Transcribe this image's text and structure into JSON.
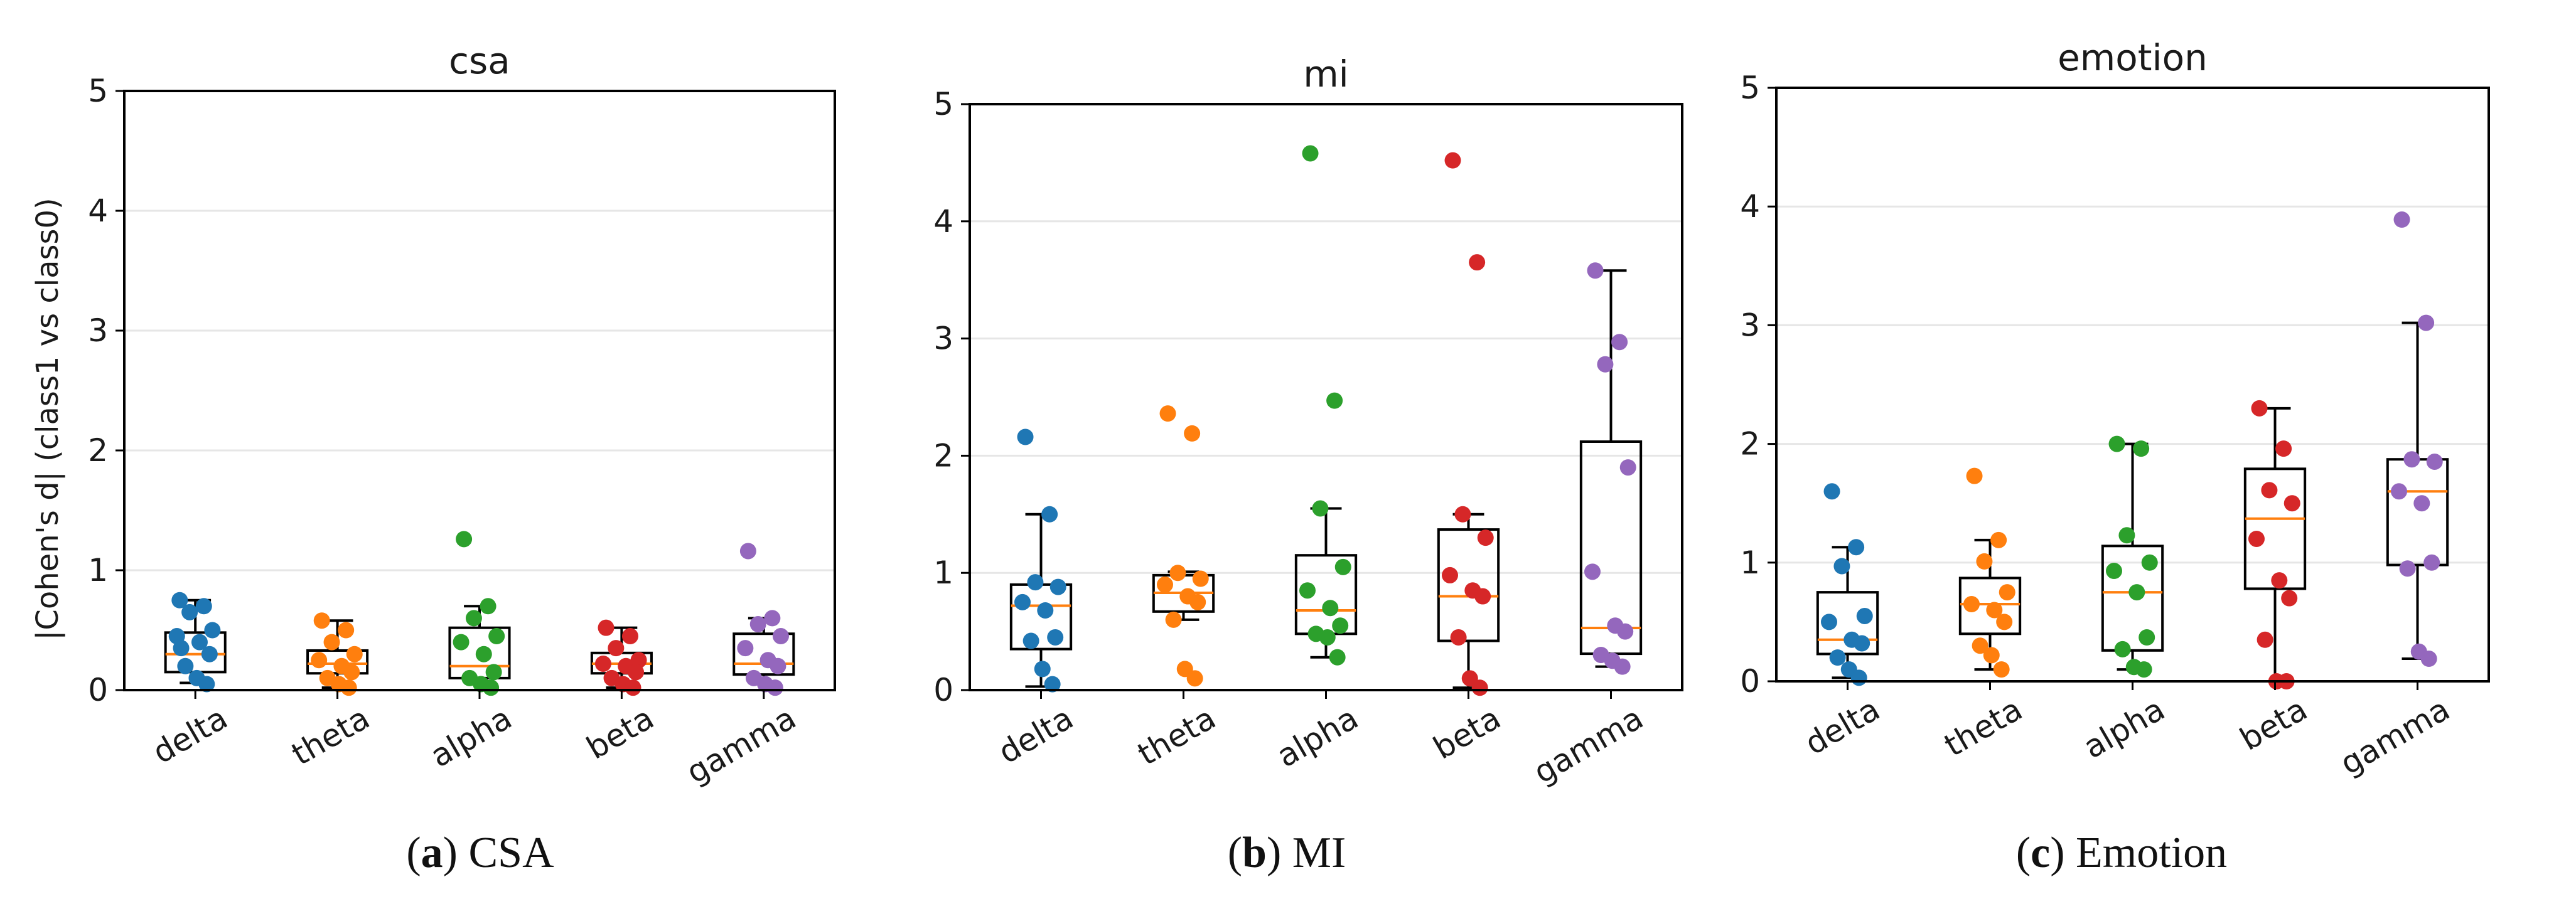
{
  "figure": {
    "y_axis_label": "|Cohen's d| (class1 vs class0)",
    "captions": [
      {
        "letter": "a",
        "text": "CSA"
      },
      {
        "letter": "b",
        "text": "MI"
      },
      {
        "letter": "c",
        "text": "Emotion"
      }
    ]
  },
  "colors": {
    "delta": "#1f77b4",
    "theta": "#ff7f0e",
    "alpha": "#2ca02c",
    "beta": "#d62728",
    "gamma": "#9467bd",
    "median": "#ff7f0e",
    "box": "#000000",
    "grid": "#e6e6e6"
  },
  "chart_data": [
    {
      "type": "box",
      "title": "csa",
      "categories": [
        "delta",
        "theta",
        "alpha",
        "beta",
        "gamma"
      ],
      "ylim": [
        0,
        5
      ],
      "yticks": [
        0,
        1,
        2,
        3,
        4,
        5
      ],
      "grid": "horizontal",
      "boxes": [
        {
          "q1": 0.15,
          "median": 0.3,
          "q3": 0.48,
          "whisker_low": 0.06,
          "whisker_high": 0.75
        },
        {
          "q1": 0.14,
          "median": 0.22,
          "q3": 0.33,
          "whisker_low": 0.02,
          "whisker_high": 0.58
        },
        {
          "q1": 0.1,
          "median": 0.2,
          "q3": 0.52,
          "whisker_low": 0.0,
          "whisker_high": 0.7
        },
        {
          "q1": 0.14,
          "median": 0.22,
          "q3": 0.31,
          "whisker_low": 0.02,
          "whisker_high": 0.52
        },
        {
          "q1": 0.13,
          "median": 0.22,
          "q3": 0.47,
          "whisker_low": 0.0,
          "whisker_high": 0.6
        }
      ],
      "points": [
        [
          0.75,
          0.7,
          0.65,
          0.5,
          0.45,
          0.4,
          0.3,
          0.2,
          0.1,
          0.05,
          0.35
        ],
        [
          0.58,
          0.5,
          0.4,
          0.3,
          0.25,
          0.2,
          0.15,
          0.1,
          0.05,
          0.02
        ],
        [
          1.26,
          0.7,
          0.6,
          0.45,
          0.4,
          0.3,
          0.15,
          0.1,
          0.05,
          0.02
        ],
        [
          0.52,
          0.45,
          0.35,
          0.25,
          0.22,
          0.2,
          0.15,
          0.1,
          0.05,
          0.02
        ],
        [
          1.16,
          0.6,
          0.55,
          0.45,
          0.35,
          0.25,
          0.2,
          0.1,
          0.05,
          0.02
        ]
      ]
    },
    {
      "type": "box",
      "title": "mi",
      "categories": [
        "delta",
        "theta",
        "alpha",
        "beta",
        "gamma"
      ],
      "ylim": [
        0,
        5
      ],
      "yticks": [
        0,
        1,
        2,
        3,
        4,
        5
      ],
      "grid": "horizontal",
      "boxes": [
        {
          "q1": 0.35,
          "median": 0.72,
          "q3": 0.9,
          "whisker_low": 0.03,
          "whisker_high": 1.5
        },
        {
          "q1": 0.67,
          "median": 0.83,
          "q3": 0.98,
          "whisker_low": 0.6,
          "whisker_high": 1.01
        },
        {
          "q1": 0.48,
          "median": 0.68,
          "q3": 1.15,
          "whisker_low": 0.28,
          "whisker_high": 1.55
        },
        {
          "q1": 0.42,
          "median": 0.8,
          "q3": 1.37,
          "whisker_low": 0.02,
          "whisker_high": 1.5
        },
        {
          "q1": 0.31,
          "median": 0.53,
          "q3": 2.12,
          "whisker_low": 0.2,
          "whisker_high": 3.58
        }
      ],
      "points": [
        [
          2.16,
          1.5,
          0.92,
          0.88,
          0.75,
          0.68,
          0.45,
          0.42,
          0.18,
          0.05
        ],
        [
          2.36,
          2.19,
          1.0,
          0.95,
          0.9,
          0.8,
          0.75,
          0.6,
          0.18,
          0.1
        ],
        [
          4.58,
          2.47,
          1.55,
          1.05,
          0.85,
          0.7,
          0.55,
          0.48,
          0.45,
          0.28
        ],
        [
          4.52,
          3.65,
          1.5,
          1.3,
          0.98,
          0.85,
          0.8,
          0.45,
          0.1,
          0.02
        ],
        [
          3.58,
          2.97,
          2.78,
          1.9,
          1.01,
          0.55,
          0.5,
          0.3,
          0.25,
          0.2
        ]
      ]
    },
    {
      "type": "box",
      "title": "emotion",
      "categories": [
        "delta",
        "theta",
        "alpha",
        "beta",
        "gamma"
      ],
      "ylim": [
        0,
        5
      ],
      "yticks": [
        0,
        1,
        2,
        3,
        4,
        5
      ],
      "grid": "horizontal",
      "boxes": [
        {
          "q1": 0.23,
          "median": 0.35,
          "q3": 0.75,
          "whisker_low": 0.03,
          "whisker_high": 1.13
        },
        {
          "q1": 0.4,
          "median": 0.65,
          "q3": 0.87,
          "whisker_low": 0.1,
          "whisker_high": 1.19
        },
        {
          "q1": 0.26,
          "median": 0.75,
          "q3": 1.14,
          "whisker_low": 0.1,
          "whisker_high": 2.0
        },
        {
          "q1": 0.78,
          "median": 1.37,
          "q3": 1.79,
          "whisker_low": 0.0,
          "whisker_high": 2.3
        },
        {
          "q1": 0.98,
          "median": 1.6,
          "q3": 1.87,
          "whisker_low": 0.19,
          "whisker_high": 3.02
        }
      ],
      "points": [
        [
          1.6,
          1.13,
          0.97,
          0.55,
          0.5,
          0.35,
          0.32,
          0.2,
          0.1,
          0.03
        ],
        [
          1.73,
          1.19,
          1.01,
          0.75,
          0.65,
          0.6,
          0.5,
          0.3,
          0.22,
          0.1
        ],
        [
          2.0,
          1.96,
          1.23,
          1.0,
          0.93,
          0.75,
          0.37,
          0.27,
          0.12,
          0.1
        ],
        [
          2.3,
          1.96,
          1.61,
          1.5,
          1.2,
          0.85,
          0.7,
          0.35,
          0.0,
          0.0
        ],
        [
          3.89,
          3.02,
          1.87,
          1.85,
          1.6,
          1.5,
          1.0,
          0.95,
          0.25,
          0.19
        ]
      ]
    }
  ]
}
